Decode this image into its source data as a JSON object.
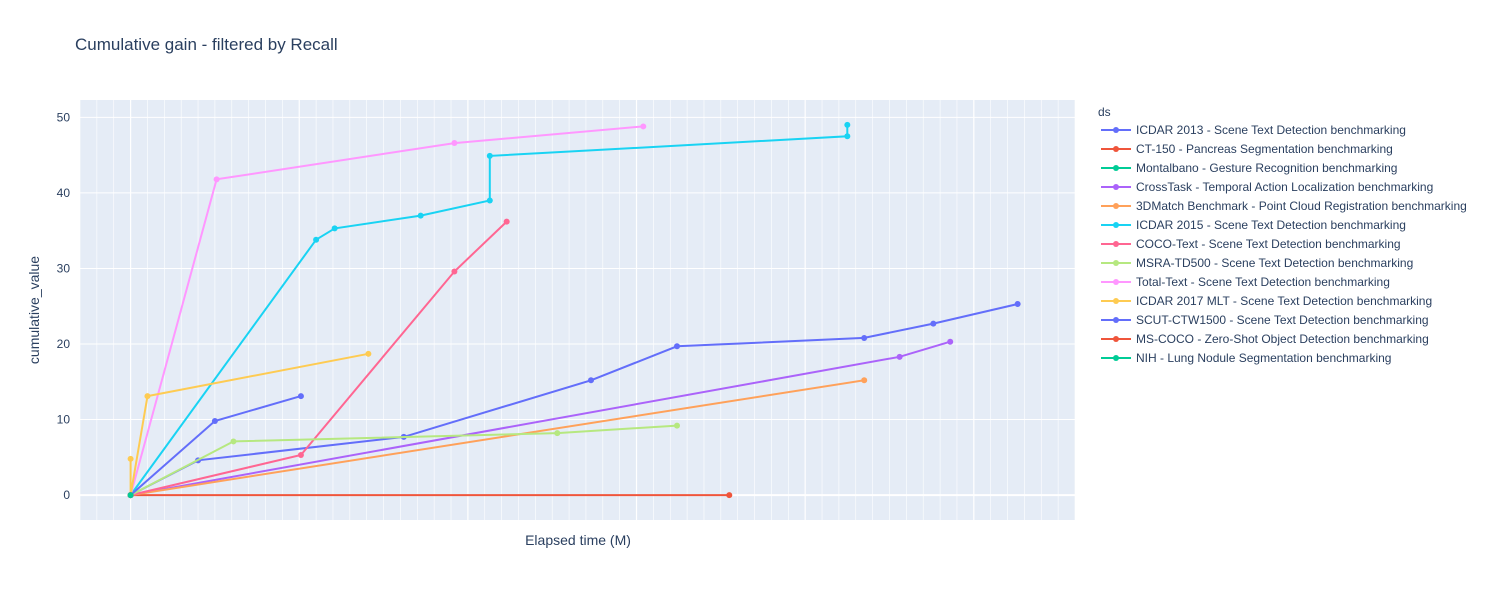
{
  "chart_data": {
    "type": "line",
    "title": "Cumulative gain - filtered by Recall",
    "xlabel": "Elapsed time (M)",
    "ylabel": "cumulative_value",
    "x_ticks_labeled": false,
    "xlim": [
      -3,
      56
    ],
    "ylim": [
      -3.3,
      52.3
    ],
    "y_ticks": [
      0,
      10,
      20,
      30,
      40,
      50
    ],
    "grid": true,
    "legend_title": "ds",
    "legend_position": "right",
    "series": [
      {
        "name": "ICDAR 2013 - Scene Text Detection benchmarking",
        "color": "#636efa",
        "x": [
          0,
          4,
          16.2,
          27.3,
          32.4,
          43.5,
          47.6,
          52.6
        ],
        "y": [
          0,
          4.6,
          7.7,
          15.2,
          19.7,
          20.8,
          22.7,
          25.3
        ]
      },
      {
        "name": "CT-150 - Pancreas Segmentation benchmarking",
        "color": "#EF553B",
        "x": [
          0,
          35.5
        ],
        "y": [
          0,
          0
        ]
      },
      {
        "name": "Montalbano - Gesture Recognition benchmarking",
        "color": "#00cc96",
        "x": [
          0
        ],
        "y": [
          0
        ]
      },
      {
        "name": "CrossTask - Temporal Action Localization benchmarking",
        "color": "#ab63fa",
        "x": [
          0,
          45.6,
          48.6
        ],
        "y": [
          0,
          18.3,
          20.3
        ]
      },
      {
        "name": "3DMatch Benchmark - Point Cloud Registration benchmarking",
        "color": "#FFA15A",
        "x": [
          0,
          43.5
        ],
        "y": [
          0,
          15.2
        ]
      },
      {
        "name": "ICDAR 2015 - Scene Text Detection benchmarking",
        "color": "#19d3f3",
        "x": [
          0,
          11,
          12.1,
          17.2,
          21.3,
          21.3,
          42.5,
          42.5
        ],
        "y": [
          0,
          33.8,
          35.3,
          37,
          39,
          44.9,
          47.5,
          49
        ]
      },
      {
        "name": "COCO-Text - Scene Text Detection benchmarking",
        "color": "#FF6692",
        "x": [
          0,
          10.1,
          19.2,
          22.3
        ],
        "y": [
          0,
          5.3,
          29.6,
          36.2
        ]
      },
      {
        "name": "MSRA-TD500 - Scene Text Detection benchmarking",
        "color": "#B6E880",
        "x": [
          0,
          6.1,
          25.3,
          32.4
        ],
        "y": [
          0,
          7.1,
          8.2,
          9.2
        ]
      },
      {
        "name": "Total-Text - Scene Text Detection benchmarking",
        "color": "#FF97FF",
        "x": [
          0,
          5.1,
          19.2,
          30.4
        ],
        "y": [
          0,
          41.8,
          46.6,
          48.8
        ]
      },
      {
        "name": "ICDAR 2017 MLT - Scene Text Detection benchmarking",
        "color": "#FECB52",
        "x": [
          0,
          0,
          1,
          14.1
        ],
        "y": [
          4.8,
          0,
          13.1,
          18.7
        ]
      },
      {
        "name": "SCUT-CTW1500 - Scene Text Detection benchmarking",
        "color": "#636efa",
        "x": [
          0,
          5,
          10.1
        ],
        "y": [
          0,
          9.8,
          13.1
        ]
      },
      {
        "name": "MS-COCO - Zero-Shot Object Detection benchmarking",
        "color": "#EF553B",
        "x": [
          0
        ],
        "y": [
          0
        ]
      },
      {
        "name": "NIH - Lung Nodule Segmentation benchmarking",
        "color": "#00cc96",
        "x": [
          0
        ],
        "y": [
          0
        ]
      }
    ]
  }
}
